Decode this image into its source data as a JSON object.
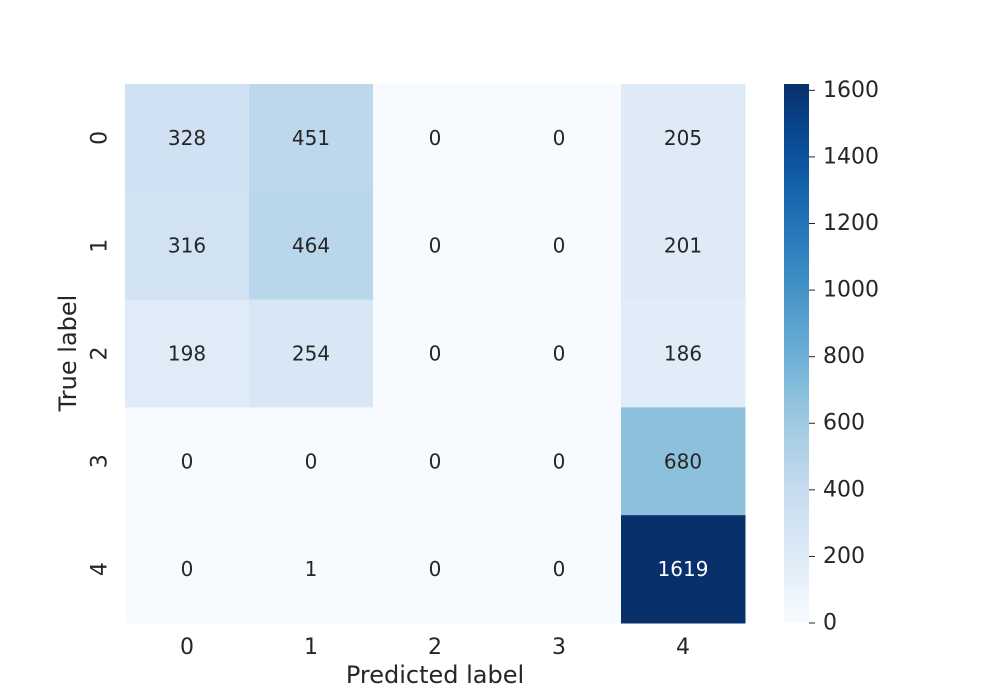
{
  "chart_data": {
    "type": "heatmap",
    "title": "",
    "xlabel": "Predicted label",
    "ylabel": "True label",
    "x_categories": [
      "0",
      "1",
      "2",
      "3",
      "4"
    ],
    "y_categories": [
      "0",
      "1",
      "2",
      "3",
      "4"
    ],
    "values": [
      [
        328,
        451,
        0,
        0,
        205
      ],
      [
        316,
        464,
        0,
        0,
        201
      ],
      [
        198,
        254,
        0,
        0,
        186
      ],
      [
        0,
        0,
        0,
        0,
        680
      ],
      [
        0,
        1,
        0,
        0,
        1619
      ]
    ],
    "colormap": "Blues",
    "color_range": [
      0,
      1619
    ],
    "colorbar_ticks": [
      0,
      200,
      400,
      600,
      800,
      1000,
      1200,
      1400,
      1600
    ],
    "grid": false,
    "colorbar_position": "right"
  }
}
